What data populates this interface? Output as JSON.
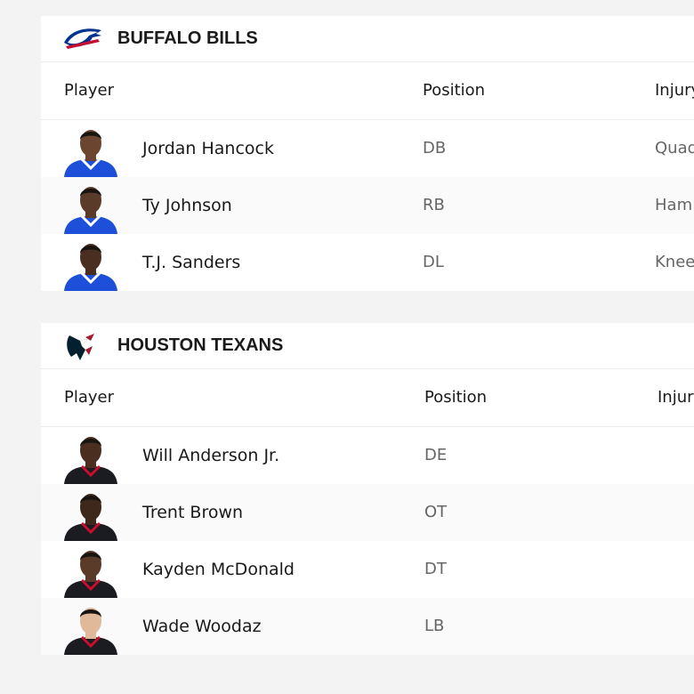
{
  "teams": [
    {
      "name": "BUFFALO BILLS",
      "headers": [
        "Player",
        "Position",
        "Injury"
      ],
      "rows": [
        {
          "player": "Jordan Hancock",
          "position": "DB",
          "injury": "Quad"
        },
        {
          "player": "Ty Johnson",
          "position": "RB",
          "injury": "Ham"
        },
        {
          "player": "T.J. Sanders",
          "position": "DL",
          "injury": "Knee"
        }
      ]
    },
    {
      "name": "HOUSTON TEXANS",
      "headers": [
        "Player",
        "Position",
        "Injury"
      ],
      "rows": [
        {
          "player": "Will Anderson Jr.",
          "position": "DE"
        },
        {
          "player": "Trent Brown",
          "position": "OT"
        },
        {
          "player": "Kayden McDonald",
          "position": "DT"
        },
        {
          "player": "Wade Woodaz",
          "position": "LB"
        }
      ]
    }
  ]
}
